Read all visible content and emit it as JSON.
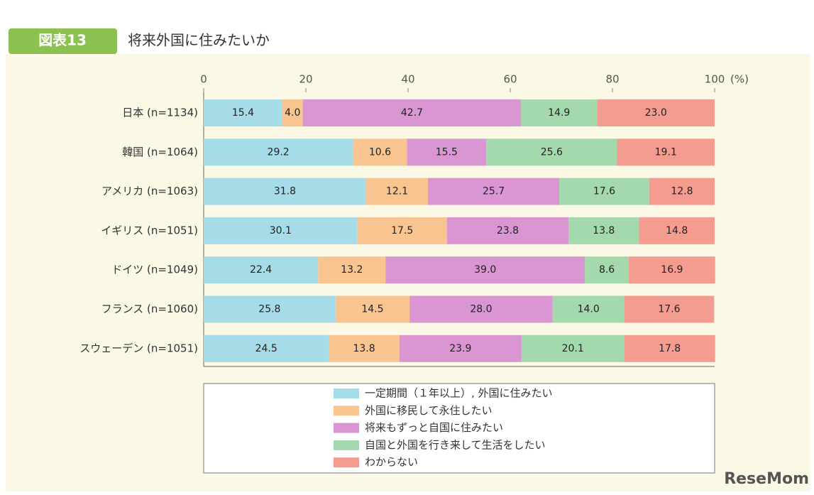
{
  "chart_data": {
    "type": "stacked-barh",
    "badge": "図表13",
    "title": "将来外国に住みたいか",
    "xlabel": "(%)",
    "watermark": "ReseMom",
    "categories": [
      "日本 (n=1134)",
      "韓国 (n=1064)",
      "アメリカ (n=1063)",
      "イギリス (n=1051)",
      "ドイツ (n=1049)",
      "フランス (n=1060)",
      "スウェーデン (n=1051)"
    ],
    "xlim": [
      0,
      100
    ],
    "xticks": [
      0,
      20,
      40,
      60,
      80,
      100
    ],
    "series": [
      {
        "name": "一定期間（１年以上）, 外国に住みたい",
        "color": "#a6dbe8",
        "values": [
          15.4,
          29.2,
          31.8,
          30.1,
          22.4,
          25.8,
          24.5
        ],
        "value_labels": [
          "15.4",
          "29.2",
          "31.8",
          "30.1",
          "22.4",
          "25.8",
          "24.5"
        ]
      },
      {
        "name": "外国に移民して永住したい",
        "color": "#f8c591",
        "values": [
          4.0,
          10.6,
          12.1,
          17.5,
          13.2,
          14.5,
          13.8
        ],
        "value_labels": [
          "4.0",
          "10.6",
          "12.1",
          "17.5",
          "13.2",
          "14.5",
          "13.8"
        ]
      },
      {
        "name": "将来もずっと自国に住みたい",
        "color": "#d996d2",
        "values": [
          42.7,
          15.5,
          25.7,
          23.8,
          39.0,
          28.0,
          23.9
        ],
        "value_labels": [
          "42.7",
          "15.5",
          "25.7",
          "23.8",
          "39.0",
          "28.0",
          "23.9"
        ]
      },
      {
        "name": "自国と外国を行き来して生活をしたい",
        "color": "#a3d9ad",
        "values": [
          14.9,
          25.6,
          17.6,
          13.8,
          8.6,
          14.0,
          20.1
        ],
        "value_labels": [
          "14.9",
          "25.6",
          "17.6",
          "13.8",
          "8.6",
          "14.0",
          "20.1"
        ]
      },
      {
        "name": "わからない",
        "color": "#f49c90",
        "values": [
          23.0,
          19.1,
          12.8,
          14.8,
          16.9,
          17.6,
          17.8
        ],
        "value_labels": [
          "23.0",
          "19.1",
          "12.8",
          "14.8",
          "16.9",
          "17.6",
          "17.8"
        ]
      }
    ]
  }
}
